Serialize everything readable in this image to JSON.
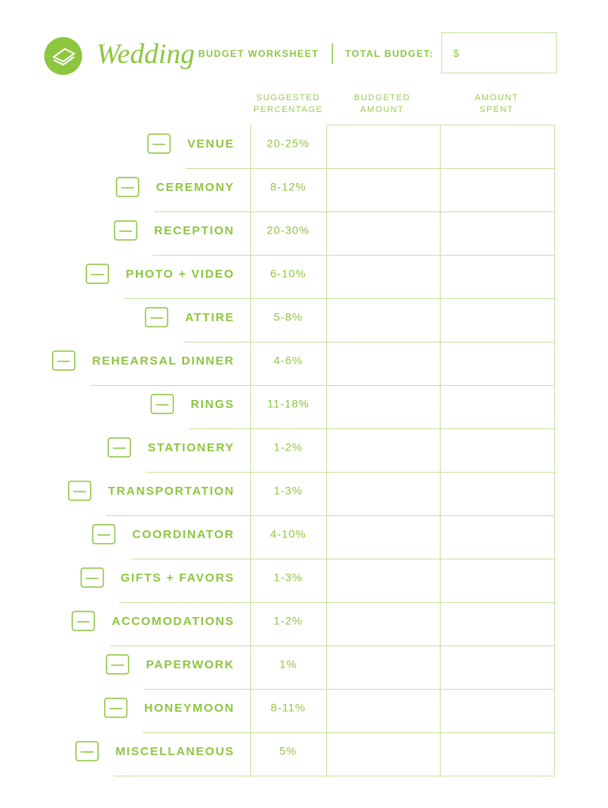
{
  "header": {
    "title": "Wedding",
    "subtitle": "BUDGET WORKSHEET",
    "total_label": "TOTAL BUDGET:",
    "total_value": "$"
  },
  "table": {
    "columns": [
      "SUGGESTED\nPERCENTAGE",
      "BUDGETED\nAMOUNT",
      "AMOUNT\nSPENT"
    ],
    "rows": [
      [
        "VENUE",
        "20-25%"
      ],
      [
        "CEREMONY",
        "8-12%"
      ],
      [
        "RECEPTION",
        "20-30%"
      ],
      [
        "PHOTO + VIDEO",
        "6-10%"
      ],
      [
        "ATTIRE",
        "5-8%"
      ],
      [
        "REHEARSAL DINNER",
        "4-6%"
      ],
      [
        "RINGS",
        "11-18%"
      ],
      [
        "STATIONERY",
        "1-2%"
      ],
      [
        "TRANSPORTATION",
        "1-3%"
      ],
      [
        "COORDINATOR",
        "4-10%"
      ],
      [
        "GIFTS + FAVORS",
        "1-3%"
      ],
      [
        "ACCOMODATIONS",
        "1-2%"
      ],
      [
        "PAPERWORK",
        "1%"
      ],
      [
        "HONEYMOON",
        "8-11%"
      ],
      [
        "MISCELLANEOUS",
        "5%"
      ]
    ]
  }
}
